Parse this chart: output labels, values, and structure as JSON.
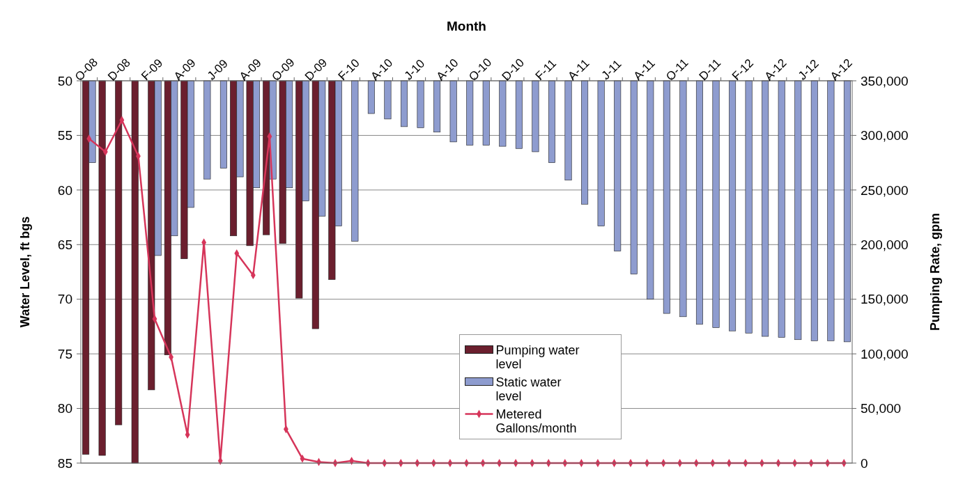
{
  "chart_data": {
    "type": "bar",
    "xlabel": "Month",
    "ylabel": "Water Level, ft bgs",
    "y2label": "Pumping Rate, gpm",
    "categories": [
      "O-08",
      null,
      "D-08",
      null,
      "F-09",
      null,
      "A-09",
      null,
      "J-09",
      null,
      "A-09",
      null,
      "O-09",
      null,
      "D-09",
      null,
      "F-10",
      null,
      "A-10",
      null,
      "J-10",
      null,
      "A-10",
      null,
      "O-10",
      null,
      "D-10",
      null,
      "F-11",
      null,
      "A-11",
      null,
      "J-11",
      null,
      "A-11",
      null,
      "O-11",
      null,
      "D-11",
      null,
      "F-12",
      null,
      "A-12",
      null,
      "J-12",
      null,
      "A-12"
    ],
    "series": [
      {
        "name": "Pumping water level",
        "color": "#6b1f2e",
        "values": [
          84.2,
          84.3,
          81.5,
          85,
          78.3,
          75.1,
          66.3,
          null,
          null,
          64.2,
          65.1,
          64.1,
          64.9,
          69.9,
          72.7,
          68.2,
          null,
          null,
          null,
          null,
          null,
          null,
          null,
          null,
          null,
          null,
          null,
          null,
          null,
          null,
          null,
          null,
          null,
          null,
          null,
          null,
          null,
          null,
          null,
          null,
          null,
          null,
          null,
          null,
          null,
          null,
          null
        ]
      },
      {
        "name": "Static water level",
        "color": "#8e9ccf",
        "values": [
          57.5,
          null,
          null,
          null,
          66,
          64.2,
          61.6,
          59,
          58,
          58.8,
          59.8,
          59,
          59.8,
          61,
          62.4,
          63.3,
          64.7,
          53,
          53.5,
          54.2,
          54.3,
          54.7,
          55.6,
          55.9,
          55.9,
          56,
          56.2,
          56.5,
          57.5,
          59.1,
          61.3,
          63.3,
          65.6,
          67.7,
          70,
          71.3,
          71.6,
          72.3,
          72.6,
          72.9,
          73.1,
          73.4,
          73.5,
          73.7,
          73.8,
          73.8,
          73.9
        ]
      },
      {
        "name": "Metered Gallons/month",
        "type": "line",
        "axis": "y2",
        "color": "#d6355a",
        "values": [
          297000,
          285000,
          314000,
          281000,
          132000,
          97000,
          26000,
          202000,
          2000,
          192000,
          172000,
          299000,
          31000,
          4000,
          1000,
          0,
          2000,
          0,
          0,
          0,
          0,
          0,
          0,
          0,
          0,
          0,
          0,
          0,
          0,
          0,
          0,
          0,
          0,
          0,
          0,
          0,
          0,
          0,
          0,
          0,
          0,
          0,
          0,
          0,
          0,
          0,
          0
        ]
      }
    ],
    "ylim": [
      85,
      50
    ],
    "yticks": [
      50,
      55,
      60,
      65,
      70,
      75,
      80,
      85
    ],
    "y2lim": [
      0,
      350000
    ],
    "y2ticks": [
      {
        "value": 0,
        "label": "0"
      },
      {
        "value": 50000,
        "label": "50,000"
      },
      {
        "value": 100000,
        "label": "100,000"
      },
      {
        "value": 150000,
        "label": "150,000"
      },
      {
        "value": 200000,
        "label": "200,000"
      },
      {
        "value": 250000,
        "label": "250,000"
      },
      {
        "value": 300000,
        "label": "300,000"
      },
      {
        "value": 350000,
        "label": "350,000"
      }
    ],
    "grid": "y",
    "legend": "center",
    "marker": "diamond"
  }
}
